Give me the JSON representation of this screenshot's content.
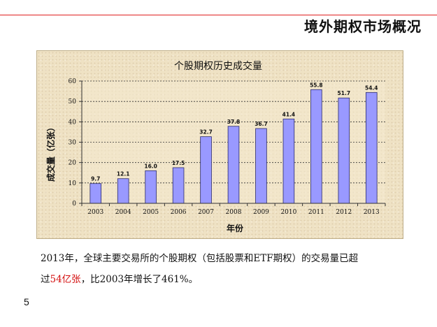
{
  "slide": {
    "title": "境外期权市场概况",
    "page_number": "5",
    "caption": {
      "line1": "2013年，全球主要交易所的个股期权（包括股票和ETF期权）的交易量已超",
      "line2_prefix": "过",
      "line2_highlight": "54亿张",
      "line2_suffix": "，比2003年增长了461%。"
    }
  },
  "chart_data": {
    "type": "bar",
    "title": "个股期权历史成交量",
    "xlabel": "年份",
    "ylabel": "成交量（亿张）",
    "categories": [
      "2003",
      "2004",
      "2005",
      "2006",
      "2007",
      "2008",
      "2009",
      "2010",
      "2011",
      "2012",
      "2013"
    ],
    "values": [
      9.7,
      12.1,
      16.0,
      17.5,
      32.7,
      37.8,
      36.7,
      41.4,
      55.8,
      51.7,
      54.4
    ],
    "data_labels": [
      "9.7",
      "12.1",
      "16.0",
      "17.5",
      "32.7",
      "37.8",
      "36.7",
      "41.4",
      "55.8",
      "51.7",
      "54.4"
    ],
    "yticks": [
      "0",
      "10",
      "20",
      "30",
      "40",
      "50",
      "60"
    ],
    "ylim": [
      0,
      60
    ],
    "grid": true,
    "legend": "none",
    "colors": {
      "bar": "#9999ff",
      "bar_edge": "#2b2b6b",
      "background": "#efe2c4"
    }
  }
}
